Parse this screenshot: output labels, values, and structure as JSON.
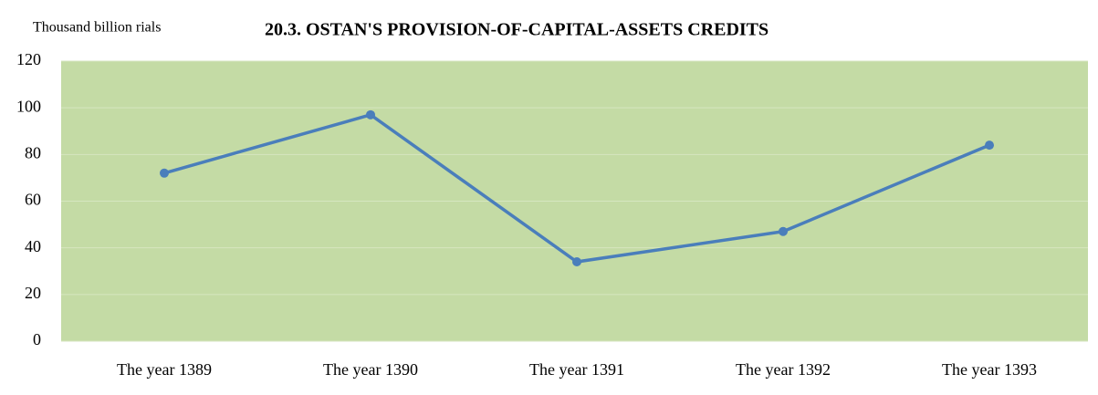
{
  "chart_data": {
    "type": "line",
    "title": "20.3. OSTAN'S PROVISION-OF-CAPITAL-ASSETS  CREDITS",
    "y_label": "Thousand billion rials",
    "categories": [
      "The year 1389",
      "The year 1390",
      "The year 1391",
      "The year 1392",
      "The year 1393"
    ],
    "values": [
      72,
      97,
      34,
      47,
      84
    ],
    "color": "#4a7ebb",
    "ylim": [
      0,
      120
    ],
    "yticks": [
      0,
      20,
      40,
      60,
      80,
      100,
      120
    ],
    "grid": true
  }
}
